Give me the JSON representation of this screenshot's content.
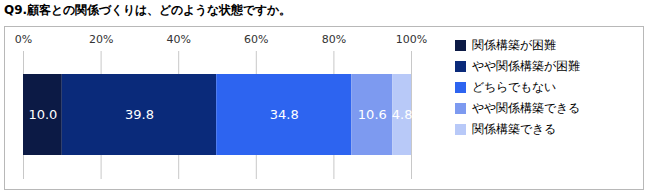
{
  "chart_data": {
    "type": "bar",
    "title": "Q9.顧客との関係づくりは、どのような状態ですか。",
    "orientation": "horizontal",
    "stacked": true,
    "data_labels": true,
    "grid": true,
    "legend": "right",
    "tick_labels": "x",
    "categories": [
      null
    ],
    "xlim": [
      0,
      100
    ],
    "xticks": [
      {
        "value": 0,
        "label": "0%"
      },
      {
        "value": 20,
        "label": "20%"
      },
      {
        "value": 40,
        "label": "40%"
      },
      {
        "value": 60,
        "label": "60%"
      },
      {
        "value": 80,
        "label": "80%"
      },
      {
        "value": 100,
        "label": "100%"
      }
    ],
    "series": [
      {
        "name": "関係構築が困難",
        "color": "#0c1a45",
        "values": [
          10.0
        ],
        "value_labels": [
          "10.0"
        ]
      },
      {
        "name": "やや関係構築が困難",
        "color": "#0a2a7a",
        "values": [
          39.8
        ],
        "value_labels": [
          "39.8"
        ]
      },
      {
        "name": "どちらでもない",
        "color": "#2d64f0",
        "values": [
          34.8
        ],
        "value_labels": [
          "34.8"
        ]
      },
      {
        "name": "やや関係構築できる",
        "color": "#7d9af0",
        "values": [
          10.6
        ],
        "value_labels": [
          "10.6"
        ]
      },
      {
        "name": "関係構築できる",
        "color": "#b8c9f8",
        "values": [
          4.8
        ],
        "value_labels": [
          "4.8"
        ]
      }
    ]
  }
}
